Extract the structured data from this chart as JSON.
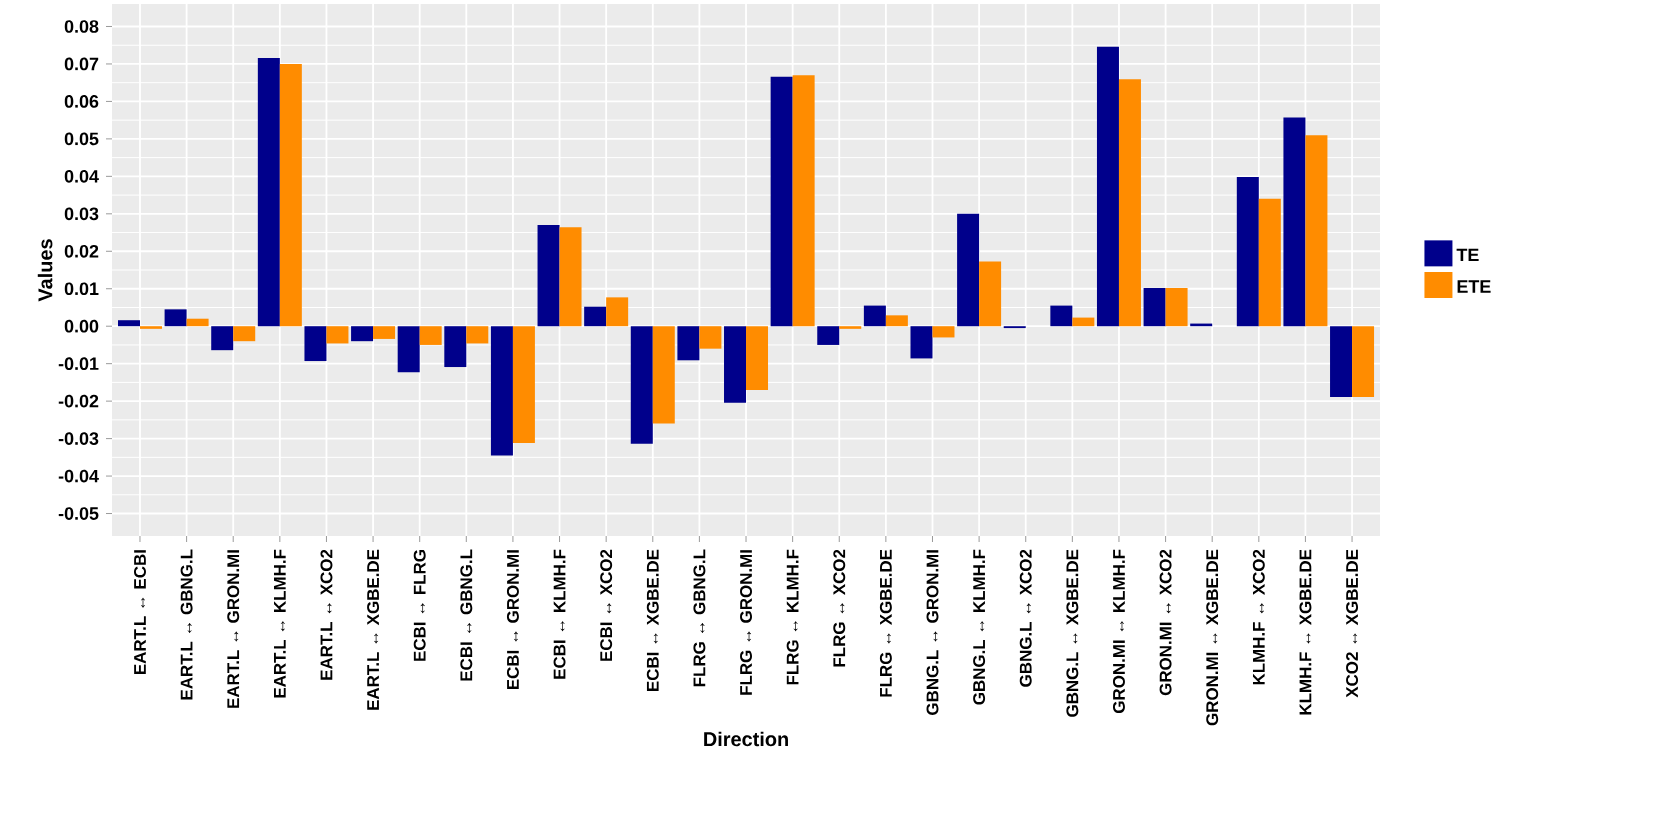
{
  "chart_data": {
    "type": "bar",
    "xlabel": "Direction",
    "ylabel": "Values",
    "categories": [
      "EART.L ↔ ECBI",
      "EART.L ↔ GBNG.L",
      "EART.L ↔ GRON.MI",
      "EART.L ↔ KLMH.F",
      "EART.L ↔ XCO2",
      "EART.L ↔ XGBE.DE",
      "ECBI ↔ FLRG",
      "ECBI ↔ GBNG.L",
      "ECBI ↔ GRON.MI",
      "ECBI ↔ KLMH.F",
      "ECBI ↔ XCO2",
      "ECBI ↔ XGBE.DE",
      "FLRG ↔ GBNG.L",
      "FLRG ↔ GRON.MI",
      "FLRG ↔ KLMH.F",
      "FLRG ↔ XCO2",
      "FLRG ↔ XGBE.DE",
      "GBNG.L ↔ GRON.MI",
      "GBNG.L ↔ KLMH.F",
      "GBNG.L ↔ XCO2",
      "GBNG.L ↔ XGBE.DE",
      "GRON.MI ↔ KLMH.F",
      "GRON.MI ↔ XCO2",
      "GRON.MI ↔ XGBE.DE",
      "KLMH.F ↔ XCO2",
      "KLMH.F ↔ XGBE.DE",
      "XCO2 ↔ XGBE.DE"
    ],
    "series": [
      {
        "name": "TE",
        "color": "#00008b",
        "values": [
          0.0016,
          0.0045,
          -0.0064,
          0.0716,
          -0.0093,
          -0.004,
          -0.0123,
          -0.0109,
          -0.0345,
          0.027,
          0.0052,
          -0.0314,
          -0.0091,
          -0.0204,
          0.0666,
          -0.005,
          0.0055,
          -0.0086,
          0.03,
          -0.0005,
          0.0055,
          0.0746,
          0.0102,
          0.0007,
          0.0398,
          0.0557,
          -0.0189
        ]
      },
      {
        "name": "ETE",
        "color": "#ff8c00",
        "values": [
          -0.0007,
          0.002,
          -0.004,
          0.07,
          -0.0046,
          -0.0034,
          -0.005,
          -0.0046,
          -0.0312,
          0.0264,
          0.0077,
          -0.026,
          -0.006,
          -0.017,
          0.067,
          -0.0007,
          0.0029,
          -0.003,
          0.0173,
          0,
          0.0023,
          0.0659,
          0.0102,
          0,
          0.034,
          0.051,
          -0.0189
        ]
      }
    ],
    "ylim": [
      -0.056,
      0.086
    ],
    "yticks": [
      {
        "value": -0.05,
        "label": "-0.05"
      },
      {
        "value": -0.04,
        "label": "-0.04"
      },
      {
        "value": -0.03,
        "label": "-0.03"
      },
      {
        "value": -0.02,
        "label": "-0.02"
      },
      {
        "value": -0.01,
        "label": "-0.01"
      },
      {
        "value": 0,
        "label": "0.00"
      },
      {
        "value": 0.01,
        "label": "0.01"
      },
      {
        "value": 0.02,
        "label": "0.02"
      },
      {
        "value": 0.03,
        "label": "0.03"
      },
      {
        "value": 0.04,
        "label": "0.04"
      },
      {
        "value": 0.05,
        "label": "0.05"
      },
      {
        "value": 0.06,
        "label": "0.06"
      },
      {
        "value": 0.07,
        "label": "0.07"
      },
      {
        "value": 0.08,
        "label": "0.08"
      }
    ],
    "grid": true,
    "legend": "right"
  }
}
